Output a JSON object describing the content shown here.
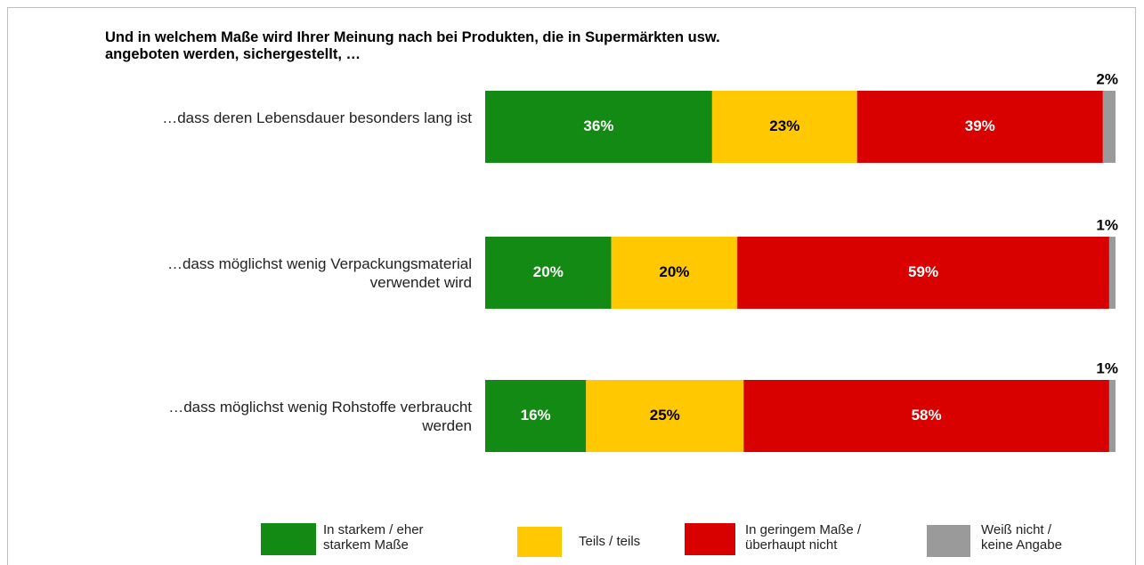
{
  "chart_data": {
    "type": "stacked-bar-horizontal",
    "title": "Und in welchem Maße wird Ihrer Meinung nach bei Produkten, die in Supermärkten usw. angeboten werden, sichergestellt, …",
    "categories": [
      "…dass deren Lebensdauer besonders lang ist",
      "…dass möglichst wenig Verpackungsmaterial verwendet wird",
      "…dass möglichst wenig Rohstoffe verbraucht  werden"
    ],
    "xlim": [
      0,
      100
    ],
    "series": [
      {
        "name": "In starkem / eher starkem Maße",
        "color": "#138a13",
        "values": [
          36,
          20,
          16
        ],
        "value_labels": [
          "36%",
          "20%",
          "16%"
        ]
      },
      {
        "name": "Teils / teils",
        "color": "#ffc800",
        "values": [
          23,
          20,
          25
        ],
        "value_labels": [
          "23%",
          "20%",
          "25%"
        ]
      },
      {
        "name": "In geringem Maße / überhaupt nicht",
        "color": "#d90000",
        "values": [
          39,
          59,
          58
        ],
        "value_labels": [
          "39%",
          "59%",
          "58%"
        ]
      },
      {
        "name": "Weiß nicht / keine Angabe",
        "color": "#9a9a9a",
        "values": [
          2,
          1,
          1
        ],
        "value_labels": [
          "2%",
          "1%",
          "1%"
        ]
      }
    ]
  }
}
